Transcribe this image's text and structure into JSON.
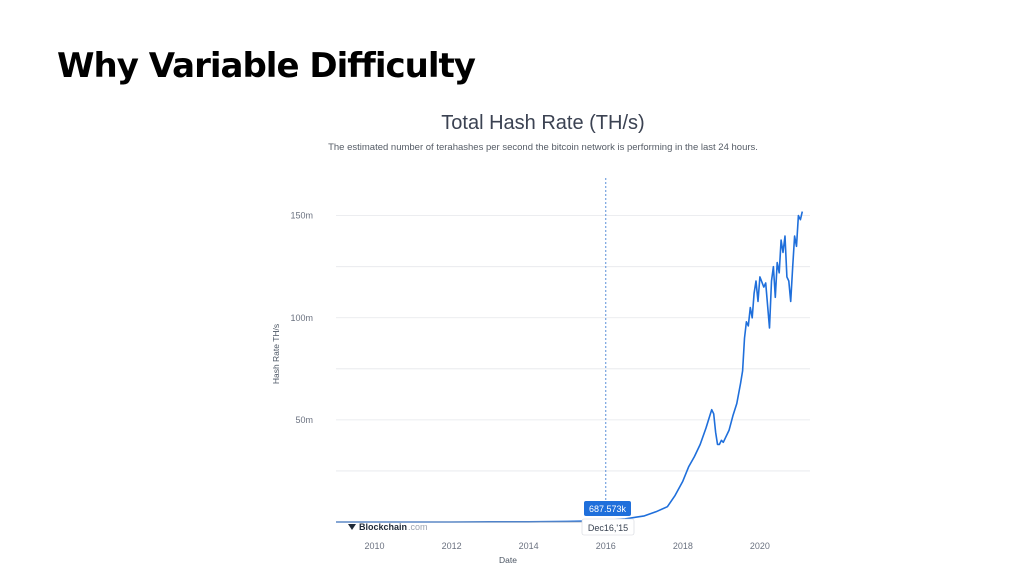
{
  "slide": {
    "title": "Why Variable Difficulty"
  },
  "chart_data": {
    "type": "line",
    "title": "Total Hash Rate (TH/s)",
    "subtitle": "The estimated number of terahashes per second the bitcoin network is performing in the last 24 hours.",
    "xlabel": "Date",
    "ylabel": "Hash Rate TH/s",
    "x_ticks": [
      "2010",
      "2012",
      "2014",
      "2016",
      "2018",
      "2020"
    ],
    "y_ticks": [
      "50m",
      "100m",
      "150m"
    ],
    "xlim": [
      2009.0,
      2021.3
    ],
    "ylim": [
      0,
      165000000
    ],
    "grid": true,
    "line_color": "#1f6fdb",
    "series": [
      {
        "x": [
          2009.0,
          2011.0,
          2012.0,
          2013.0,
          2014.0,
          2015.0,
          2015.5,
          2016.0,
          2016.5,
          2017.0,
          2017.3,
          2017.6,
          2017.8,
          2018.0,
          2018.15,
          2018.3,
          2018.45,
          2018.6,
          2018.7,
          2018.75,
          2018.8,
          2018.85,
          2018.9,
          2018.95,
          2019.0,
          2019.05,
          2019.1,
          2019.2,
          2019.3,
          2019.4,
          2019.5,
          2019.55,
          2019.6,
          2019.65,
          2019.7,
          2019.75,
          2019.8,
          2019.85,
          2019.9,
          2019.95,
          2020.0,
          2020.1,
          2020.15,
          2020.25,
          2020.3,
          2020.35,
          2020.4,
          2020.45,
          2020.5,
          2020.55,
          2020.6,
          2020.65,
          2020.7,
          2020.75,
          2020.8,
          2020.85,
          2020.9,
          2020.95,
          2021.0,
          2021.05,
          2021.1
        ],
        "y": [
          0,
          0,
          10000,
          100000,
          100000,
          300000,
          450000,
          700000,
          1500000,
          3000000,
          5000000,
          7500000,
          13000000,
          20000000,
          27000000,
          32000000,
          38000000,
          46000000,
          52000000,
          55000000,
          53000000,
          44000000,
          38000000,
          38000000,
          40000000,
          39000000,
          41000000,
          45000000,
          52000000,
          58000000,
          68000000,
          74000000,
          90000000,
          98000000,
          96000000,
          105000000,
          100000000,
          112000000,
          118000000,
          108000000,
          120000000,
          115000000,
          117000000,
          95000000,
          118000000,
          125000000,
          110000000,
          127000000,
          122000000,
          138000000,
          132000000,
          140000000,
          120000000,
          118000000,
          108000000,
          125000000,
          140000000,
          135000000,
          150000000,
          148000000,
          152000000
        ]
      }
    ],
    "cursor": {
      "x": 2016.0,
      "value_label": "687.573k",
      "date_label": "Dec16,'15"
    }
  },
  "branding": {
    "name": "Blockchain",
    "suffix": ".com"
  }
}
